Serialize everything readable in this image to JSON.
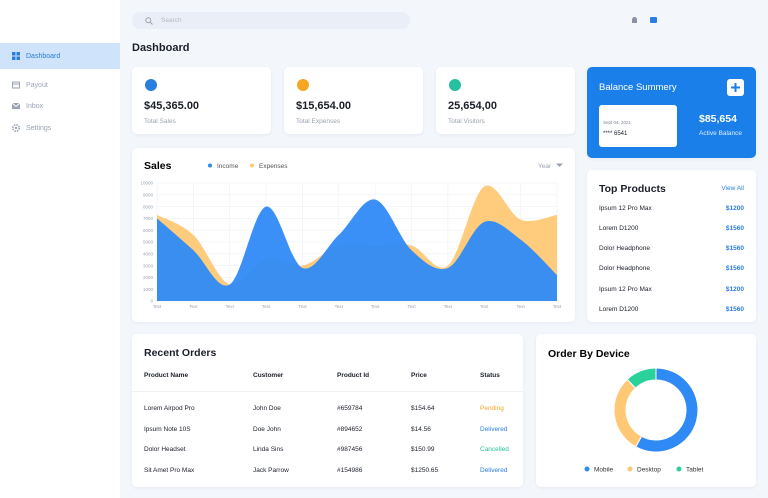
{
  "header": {
    "search_placeholder": "Search"
  },
  "sidebar": {
    "items": [
      "Dashboard",
      "Payout",
      "Inbox",
      "Settings"
    ]
  },
  "page_title": "Dashboard",
  "stats": [
    {
      "value": "$45,365.00",
      "label": "Total Sales"
    },
    {
      "value": "$15,654.00",
      "label": "Total Expenses"
    },
    {
      "value": "25,654,00",
      "label": "Total Visitors"
    }
  ],
  "balance": {
    "title": "Balance Summery",
    "card_date": "Sept 04, 2021",
    "card_number": "**** 6541",
    "amount": "$85,654",
    "amount_label": "Active Balance"
  },
  "top_products": {
    "title": "Top Products",
    "link": "View All",
    "items": [
      {
        "name": "Ipsum 12 Pro Max",
        "price": "$1200"
      },
      {
        "name": "Lorem D1200",
        "price": "$1560"
      },
      {
        "name": "Dolor Headphone",
        "price": "$1560"
      },
      {
        "name": "Dolor Headphone",
        "price": "$1560"
      },
      {
        "name": "Ipsum 12 Pro Max",
        "price": "$1200"
      },
      {
        "name": "Lorem D1200",
        "price": "$1560"
      }
    ]
  },
  "orders": {
    "title": "Recent Orders",
    "columns": [
      "Product Name",
      "Customer",
      "Product Id",
      "Price",
      "Status"
    ],
    "rows": [
      [
        "Lorem Airpod Pro",
        "John Doe",
        "#659784",
        "$154.64",
        "Pending"
      ],
      [
        "Ipsum Note 10S",
        "Doe John",
        "#894652",
        "$14.56",
        "Delivered"
      ],
      [
        "Dolor Headset",
        "Linda Sins",
        "#987456",
        "$150.99",
        "Cancelled"
      ],
      [
        "Sit Amet Pro Max",
        "Jack Parrow",
        "#154986",
        "$1250.65",
        "Delivered"
      ]
    ]
  },
  "chart_data": [
    {
      "type": "area",
      "title": "Sales",
      "period_selector": "Year",
      "categories": [
        "Text",
        "Text",
        "Text",
        "Text",
        "Text",
        "Text",
        "Text",
        "Text",
        "Text",
        "Text",
        "Text",
        "Text"
      ],
      "series": [
        {
          "name": "Income",
          "color": "#2f8af5",
          "values": [
            7000,
            4300,
            1400,
            8000,
            2800,
            5600,
            8600,
            4300,
            2800,
            6700,
            5200,
            2200
          ]
        },
        {
          "name": "Expenses",
          "color": "#ffc875",
          "values": [
            7300,
            5600,
            1400,
            3500,
            3000,
            4700,
            4700,
            4700,
            3000,
            9700,
            6900,
            7300
          ]
        }
      ],
      "ylim": [
        0,
        10000
      ],
      "yticks": [
        0,
        1000,
        2000,
        3000,
        4000,
        5000,
        6000,
        7000,
        8000,
        9000,
        10000
      ],
      "grid": true
    },
    {
      "type": "donut",
      "title": "Order By Device",
      "categories": [
        "Mobile",
        "Desktop",
        "Tablet"
      ],
      "values": [
        58,
        30,
        12
      ],
      "colors": [
        "#2f8af5",
        "#ffc875",
        "#2bd19a"
      ]
    }
  ]
}
